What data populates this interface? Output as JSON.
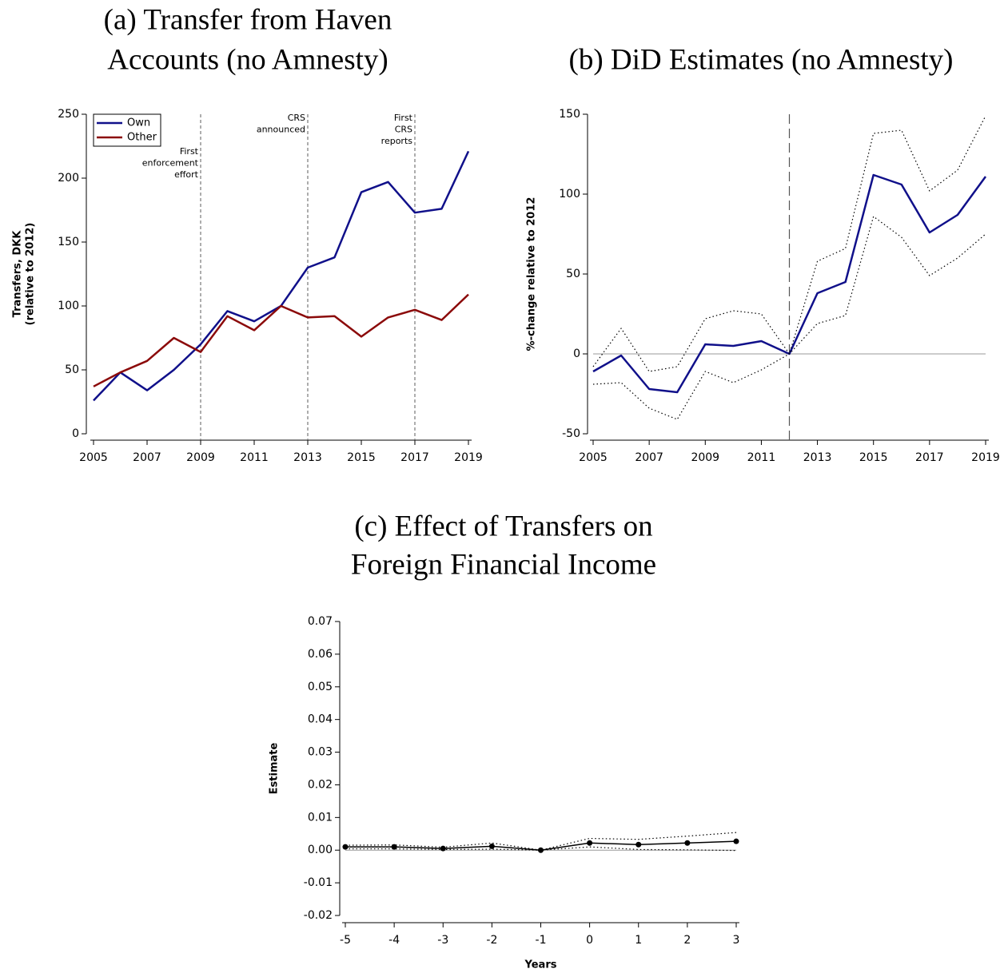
{
  "chart_data": [
    {
      "type": "line",
      "title": [
        "(a) Transfer from Haven",
        "Accounts (no Amnesty)"
      ],
      "y_label": [
        "Transfers, DKK",
        "(relative to 2012)"
      ],
      "x": [
        2005,
        2006,
        2007,
        2008,
        2009,
        2010,
        2011,
        2012,
        2013,
        2014,
        2015,
        2016,
        2017,
        2018,
        2019
      ],
      "series": [
        {
          "name": "Own",
          "color": "#10108a",
          "style": "solid",
          "values": [
            26,
            48,
            34,
            50,
            70,
            96,
            88,
            100,
            130,
            138,
            189,
            197,
            173,
            176,
            221
          ]
        },
        {
          "name": "Other",
          "color": "#8b0a0a",
          "style": "solid",
          "values": [
            37,
            48,
            57,
            75,
            64,
            92,
            81,
            100,
            91,
            92,
            76,
            91,
            97,
            89,
            109
          ]
        }
      ],
      "xlim": [
        2005,
        2019
      ],
      "xticks": [
        2005,
        2007,
        2009,
        2011,
        2013,
        2015,
        2017,
        2019
      ],
      "ylim": [
        0,
        250
      ],
      "yticks": [
        0,
        50,
        100,
        150,
        200,
        250
      ],
      "vlines": [
        2009,
        2013,
        2017
      ],
      "annotations": [
        {
          "x": 2009,
          "lines": [
            "First",
            "enforcement",
            "effort"
          ]
        },
        {
          "x": 2013,
          "lines": [
            "CRS",
            "announced"
          ]
        },
        {
          "x": 2017,
          "lines": [
            "First",
            "CRS",
            "reports"
          ]
        }
      ],
      "legend": "top-left"
    },
    {
      "type": "line",
      "title": [
        "(b) DiD Estimates (no Amnesty)"
      ],
      "y_label": [
        "%-change relative to 2012"
      ],
      "x": [
        2005,
        2006,
        2007,
        2008,
        2009,
        2010,
        2011,
        2012,
        2013,
        2014,
        2015,
        2016,
        2017,
        2018,
        2019
      ],
      "series": [
        {
          "color": "#10108a",
          "style": "solid",
          "values": [
            -11,
            -1,
            -22,
            -24,
            6,
            5,
            8,
            0,
            38,
            45,
            112,
            106,
            76,
            87,
            111
          ]
        },
        {
          "color": "#000000",
          "style": "dotted",
          "values": [
            -8,
            16,
            -11,
            -8,
            22,
            27,
            25,
            0,
            58,
            66,
            138,
            140,
            102,
            115,
            149
          ]
        },
        {
          "color": "#000000",
          "style": "dotted",
          "values": [
            -19,
            -18,
            -34,
            -41,
            -11,
            -18,
            -10,
            0,
            19,
            24,
            86,
            73,
            49,
            60,
            75
          ]
        }
      ],
      "xlim": [
        2005,
        2019
      ],
      "xticks": [
        2005,
        2007,
        2009,
        2011,
        2013,
        2015,
        2017,
        2019
      ],
      "ylim": [
        -50,
        150
      ],
      "yticks": [
        -50,
        0,
        50,
        100,
        150
      ],
      "vlines": [
        2012
      ],
      "hline": 0
    },
    {
      "type": "line",
      "title": [
        "(c) Effect of Transfers on",
        "Foreign Financial Income"
      ],
      "y_label": [
        "Estimate"
      ],
      "x_label": "Years",
      "x": [
        -5,
        -4,
        -3,
        -2,
        -1,
        0,
        1,
        2,
        3
      ],
      "series": [
        {
          "color": "#000000",
          "style": "solid",
          "markers": true,
          "values": [
            0.001,
            0.001,
            0.0005,
            0.0012,
            0,
            0.0022,
            0.0017,
            0.0022,
            0.0027
          ]
        },
        {
          "color": "#000000",
          "style": "dotted",
          "values": [
            0.0015,
            0.0016,
            0.0009,
            0.0022,
            0,
            0.0036,
            0.0033,
            0.0043,
            0.0054
          ]
        },
        {
          "color": "#000000",
          "style": "dotted",
          "values": [
            0.0004,
            0.0004,
            0.0002,
            0.0003,
            0,
            0.001,
            0.0002,
            0.0001,
            -0.0001
          ]
        }
      ],
      "xlim": [
        -5,
        3
      ],
      "xticks": [
        -5,
        -4,
        -3,
        -2,
        -1,
        0,
        1,
        2,
        3
      ],
      "ylim": [
        -0.02,
        0.07
      ],
      "yticks": [
        -0.02,
        -0.01,
        {
          "value": 0,
          "label": "0.00"
        },
        0.01,
        0.02,
        0.03,
        0.04,
        0.05,
        0.06,
        0.07
      ],
      "hline": 0
    }
  ]
}
